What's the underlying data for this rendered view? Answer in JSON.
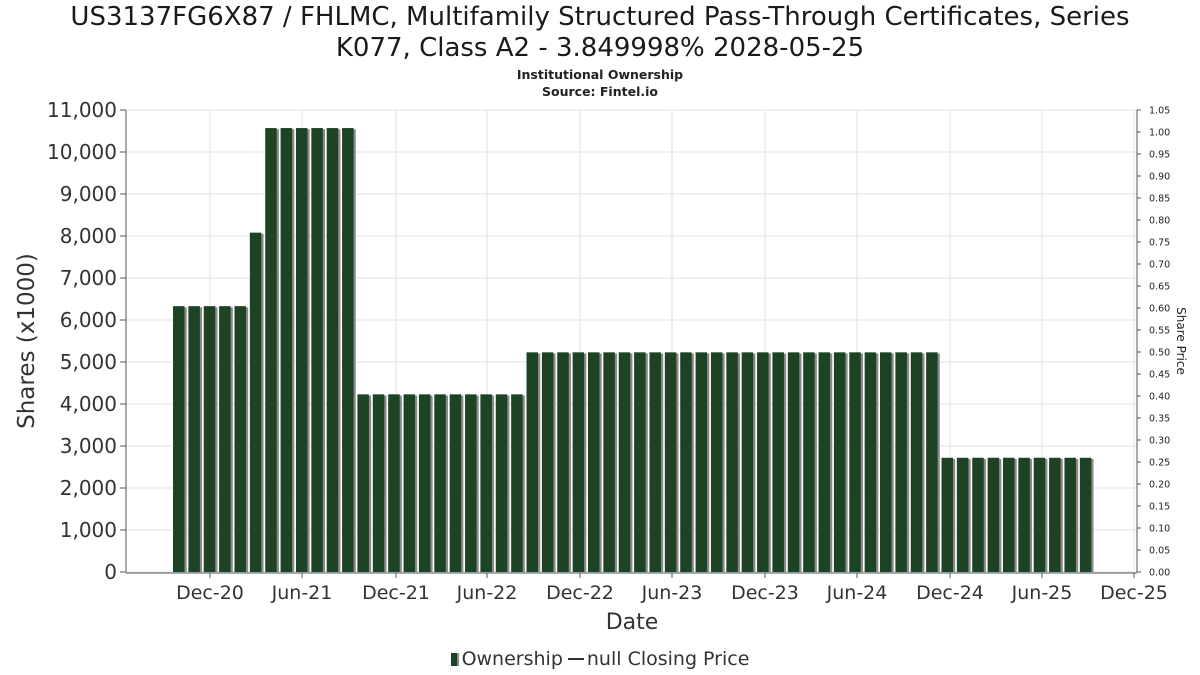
{
  "header": {
    "title_line1": "US3137FG6X87 / FHLMC, Multifamily Structured Pass-Through Certificates, Series",
    "title_line2": "K077, Class A2 - 3.849998% 2028-05-25",
    "subtitle_line1": "Institutional Ownership",
    "subtitle_line2": "Source: Fintel.io"
  },
  "legend": {
    "ownership": "Ownership",
    "price": "null Closing Price"
  },
  "colors": {
    "bar": "#1c4424",
    "bar_shadow": "#8a8a8a",
    "grid": "#e2e2e2",
    "axis": "#555555"
  },
  "chart_data": {
    "type": "bar",
    "xlabel": "Date",
    "ylabel": "Shares (x1000)",
    "y2label": "Share Price",
    "ylim": [
      0,
      11000
    ],
    "y2lim": [
      0,
      1.05
    ],
    "yticks": [
      "0",
      "1,000",
      "2,000",
      "3,000",
      "4,000",
      "5,000",
      "6,000",
      "7,000",
      "8,000",
      "9,000",
      "10,000",
      "11,000"
    ],
    "y2ticks": [
      "0.00",
      "0.05",
      "0.10",
      "0.15",
      "0.20",
      "0.25",
      "0.30",
      "0.35",
      "0.40",
      "0.45",
      "0.50",
      "0.55",
      "0.60",
      "0.65",
      "0.70",
      "0.75",
      "0.80",
      "0.85",
      "0.90",
      "0.95",
      "1.00",
      "1.05"
    ],
    "xticks": [
      "Dec-20",
      "Jun-21",
      "Dec-21",
      "Jun-22",
      "Dec-22",
      "Jun-23",
      "Dec-23",
      "Jun-24",
      "Dec-24",
      "Jun-25",
      "Dec-25"
    ],
    "grid": true,
    "legend_position": "bottom",
    "series": [
      {
        "name": "Ownership",
        "values": [
          6330,
          6330,
          6330,
          6330,
          6330,
          8080,
          10570,
          10570,
          10570,
          10570,
          10570,
          10570,
          4230,
          4230,
          4230,
          4230,
          4230,
          4230,
          4230,
          4230,
          4230,
          4230,
          4230,
          5230,
          5230,
          5230,
          5230,
          5230,
          5230,
          5230,
          5230,
          5230,
          5230,
          5230,
          5230,
          5230,
          5230,
          5230,
          5230,
          5230,
          5230,
          5230,
          5230,
          5230,
          5230,
          5230,
          5230,
          5230,
          5230,
          5230,
          2720,
          2720,
          2720,
          2720,
          2720,
          2720,
          2720,
          2720,
          2720,
          2720
        ]
      },
      {
        "name": "null Closing Price",
        "values": []
      }
    ]
  }
}
